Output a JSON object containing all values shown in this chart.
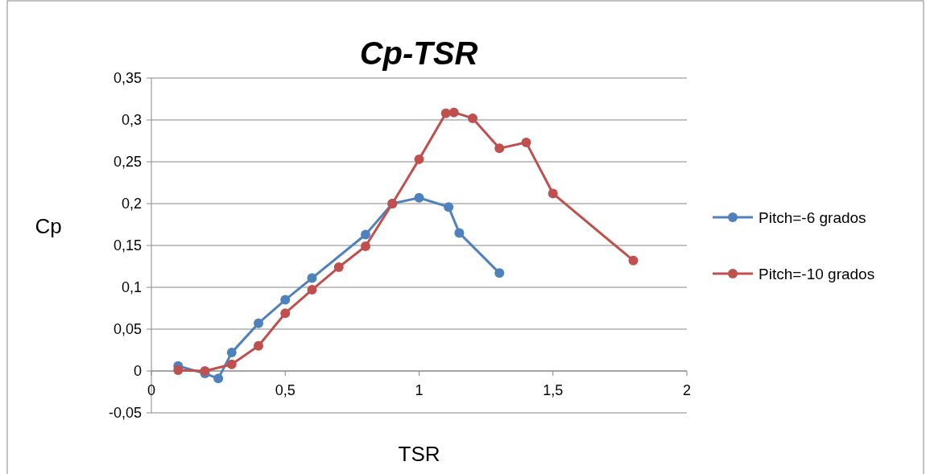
{
  "chart_data": {
    "type": "line",
    "title": "Cp-TSR",
    "xlabel": "TSR",
    "ylabel": "Cp",
    "xlim": [
      0,
      2
    ],
    "xticks": [
      0,
      {
        "value": 0.5,
        "label": "0,5"
      },
      1,
      {
        "value": 1.5,
        "label": "1,5"
      },
      2
    ],
    "ylim": [
      -0.05,
      0.35
    ],
    "yticks": [
      {
        "value": -0.05,
        "label": "-0,05"
      },
      0,
      {
        "value": 0.05,
        "label": "0,05"
      },
      {
        "value": 0.1,
        "label": "0,1"
      },
      {
        "value": 0.15,
        "label": "0,15"
      },
      {
        "value": 0.2,
        "label": "0,2"
      },
      {
        "value": 0.25,
        "label": "0,25"
      },
      {
        "value": 0.3,
        "label": "0,3"
      },
      {
        "value": 0.35,
        "label": "0,35"
      }
    ],
    "grid": "y",
    "legend": "right",
    "marker": "circle",
    "line_style": "solid",
    "series": [
      {
        "name": "Pitch=-6 grados",
        "color": "#4f81bd",
        "x": [
          0.1,
          0.2,
          0.25,
          0.3,
          0.4,
          0.5,
          0.6,
          0.8,
          0.9,
          1.0,
          1.11,
          1.15,
          1.3
        ],
        "values": [
          0.006,
          -0.003,
          -0.009,
          0.022,
          0.057,
          0.085,
          0.111,
          0.163,
          0.2,
          0.207,
          0.196,
          0.165,
          0.117
        ]
      },
      {
        "name": "Pitch=-10 grados",
        "color": "#c0504d",
        "x": [
          0.1,
          0.2,
          0.3,
          0.4,
          0.5,
          0.6,
          0.7,
          0.8,
          0.9,
          1.0,
          1.1,
          1.13,
          1.2,
          1.3,
          1.4,
          1.5,
          1.8
        ],
        "values": [
          0.001,
          0.0,
          0.008,
          0.03,
          0.069,
          0.097,
          0.124,
          0.149,
          0.2,
          0.253,
          0.308,
          0.309,
          0.302,
          0.266,
          0.273,
          0.212,
          0.132
        ]
      }
    ]
  }
}
